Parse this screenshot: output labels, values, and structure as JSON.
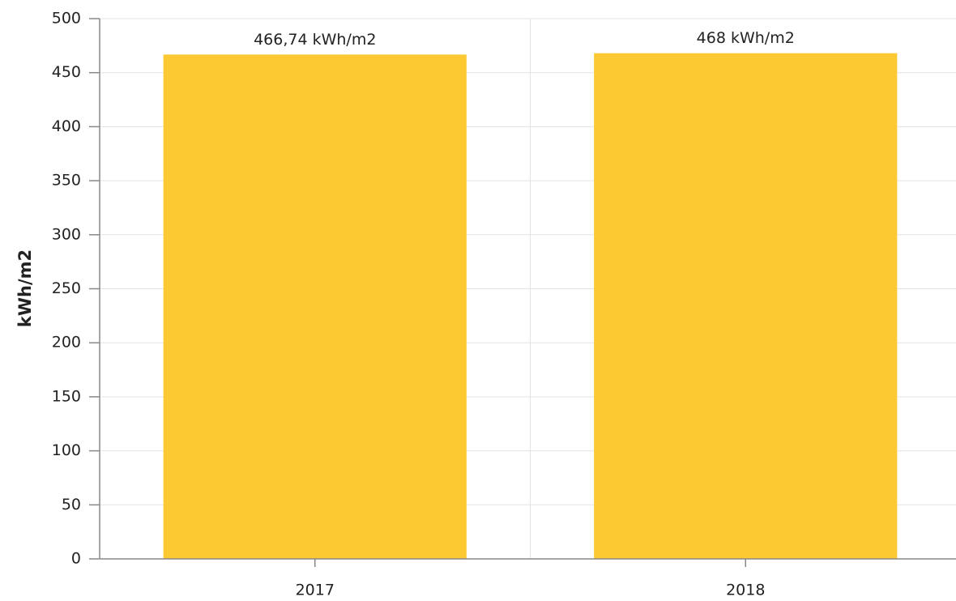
{
  "chart_data": {
    "type": "bar",
    "y_label": "kWh/m2",
    "categories": [
      "2017",
      "2018"
    ],
    "values": [
      466.74,
      468
    ],
    "value_labels": [
      "466,74 kWh/m2",
      "468 kWh/m2"
    ],
    "color": "#fcc932",
    "ylim": [
      0,
      500
    ],
    "yticks": [
      0,
      50,
      100,
      150,
      200,
      250,
      300,
      350,
      400,
      450,
      500
    ],
    "grid": true
  }
}
